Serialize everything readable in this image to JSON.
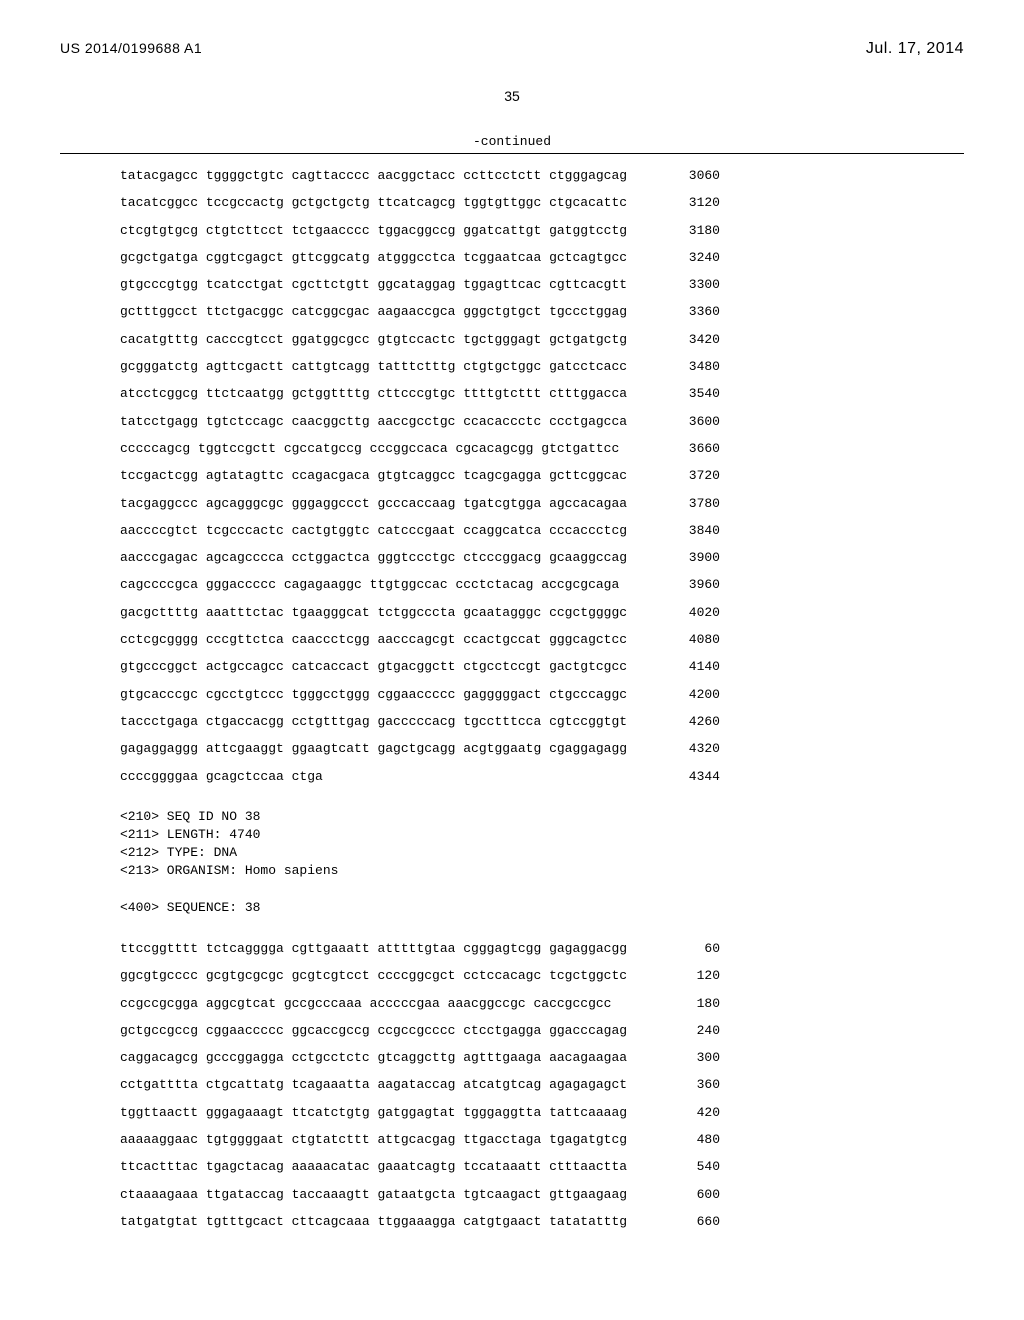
{
  "header": {
    "pub_number": "US 2014/0199688 A1",
    "pub_date": "Jul. 17, 2014",
    "page_number": "35",
    "continued_label": "-continued"
  },
  "sequence_upper": {
    "rows": [
      {
        "s": "tatacgagcc tggggctgtc cagttacccc aacggctacc ccttcctctt ctgggagcag",
        "n": "3060"
      },
      {
        "s": "tacatcggcc tccgccactg gctgctgctg ttcatcagcg tggtgttggc ctgcacattc",
        "n": "3120"
      },
      {
        "s": "ctcgtgtgcg ctgtcttcct tctgaacccc tggacggccg ggatcattgt gatggtcctg",
        "n": "3180"
      },
      {
        "s": "gcgctgatga cggtcgagct gttcggcatg atgggcctca tcggaatcaa gctcagtgcc",
        "n": "3240"
      },
      {
        "s": "gtgcccgtgg tcatcctgat cgcttctgtt ggcataggag tggagttcac cgttcacgtt",
        "n": "3300"
      },
      {
        "s": "gctttggcct ttctgacggc catcggcgac aagaaccgca gggctgtgct tgccctggag",
        "n": "3360"
      },
      {
        "s": "cacatgtttg cacccgtcct ggatggcgcc gtgtccactc tgctgggagt gctgatgctg",
        "n": "3420"
      },
      {
        "s": "gcgggatctg agttcgactt cattgtcagg tatttctttg ctgtgctggc gatcctcacc",
        "n": "3480"
      },
      {
        "s": "atcctcggcg ttctcaatgg gctggttttg cttcccgtgc ttttgtcttt ctttggacca",
        "n": "3540"
      },
      {
        "s": "tatcctgagg tgtctccagc caacggcttg aaccgcctgc ccacaccctc ccctgagcca",
        "n": "3600"
      },
      {
        "s": "cccccagcg tggtccgctt cgccatgccg cccggccaca cgcacagcgg gtctgattcc",
        "n": "3660"
      },
      {
        "s": "tccgactcgg agtatagttc ccagacgaca gtgtcaggcc tcagcgagga gcttcggcac",
        "n": "3720"
      },
      {
        "s": "tacgaggccc agcagggcgc gggaggccct gcccaccaag tgatcgtgga agccacagaa",
        "n": "3780"
      },
      {
        "s": "aaccccgtct tcgcccactc cactgtggtc catcccgaat ccaggcatca cccaccctcg",
        "n": "3840"
      },
      {
        "s": "aacccgagac agcagcccca cctggactca gggtccctgc ctcccggacg gcaaggccag",
        "n": "3900"
      },
      {
        "s": "cagccccgca gggaccccc cagagaaggc ttgtggccac ccctctacag accgcgcaga",
        "n": "3960"
      },
      {
        "s": "gacgcttttg aaatttctac tgaagggcat tctggcccta gcaatagggc ccgctggggc",
        "n": "4020"
      },
      {
        "s": "cctcgcgggg cccgttctca caaccctcgg aacccagcgt ccactgccat gggcagctcc",
        "n": "4080"
      },
      {
        "s": "gtgcccggct actgccagcc catcaccact gtgacggctt ctgcctccgt gactgtcgcc",
        "n": "4140"
      },
      {
        "s": "gtgcacccgc cgcctgtccc tgggcctggg cggaaccccc gagggggact ctgcccaggc",
        "n": "4200"
      },
      {
        "s": "taccctgaga ctgaccacgg cctgtttgag gacccccacg tgcctttcca cgtccggtgt",
        "n": "4260"
      },
      {
        "s": "gagaggaggg attcgaaggt ggaagtcatt gagctgcagg acgtggaatg cgaggagagg",
        "n": "4320"
      },
      {
        "s": "ccccggggaa gcagctccaa ctga",
        "n": "4344"
      }
    ]
  },
  "seq_meta": {
    "lines": [
      "<210> SEQ ID NO 38",
      "<211> LENGTH: 4740",
      "<212> TYPE: DNA",
      "<213> ORGANISM: Homo sapiens",
      "",
      "<400> SEQUENCE: 38"
    ]
  },
  "sequence_lower": {
    "rows": [
      {
        "s": "ttccggtttt tctcagggga cgttgaaatt atttttgtaa cgggagtcgg gagaggacgg",
        "n": "60"
      },
      {
        "s": "ggcgtgcccc gcgtgcgcgc gcgtcgtcct ccccggcgct cctccacagc tcgctggctc",
        "n": "120"
      },
      {
        "s": "ccgccgcgga aggcgtcat gccgcccaaa acccccgaa aaacggccgc caccgccgcc",
        "n": "180"
      },
      {
        "s": "gctgccgccg cggaaccccc ggcaccgccg ccgccgcccc ctcctgagga ggacccagag",
        "n": "240"
      },
      {
        "s": "caggacagcg gcccggagga cctgcctctc gtcaggcttg agtttgaaga aacagaagaa",
        "n": "300"
      },
      {
        "s": "cctgatttta ctgcattatg tcagaaatta aagataccag atcatgtcag agagagagct",
        "n": "360"
      },
      {
        "s": "tggttaactt gggagaaagt ttcatctgtg gatggagtat tgggaggtta tattcaaaag",
        "n": "420"
      },
      {
        "s": "aaaaaggaac tgtggggaat ctgtatcttt attgcacgag ttgacctaga tgagatgtcg",
        "n": "480"
      },
      {
        "s": "ttcactttac tgagctacag aaaaacatac gaaatcagtg tccataaatt ctttaactta",
        "n": "540"
      },
      {
        "s": "ctaaaagaaa ttgataccag taccaaagtt gataatgcta tgtcaagact gttgaagaag",
        "n": "600"
      },
      {
        "s": "tatgatgtat tgtttgcact cttcagcaaa ttggaaagga catgtgaact tatatatttg",
        "n": "660"
      }
    ]
  }
}
